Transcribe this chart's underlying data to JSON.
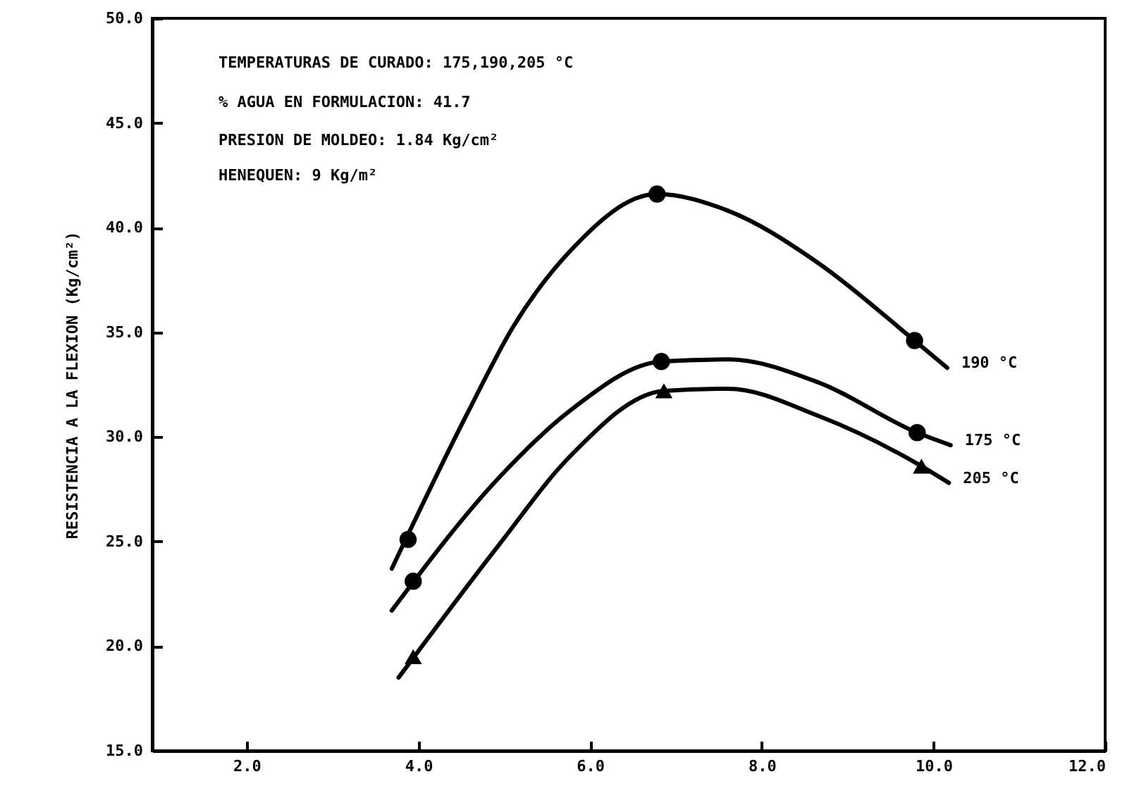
{
  "chart_data": {
    "type": "line",
    "ylabel": "RESISTENCIA A LA FLEXION  (Kg/cm²)",
    "annotations": [
      "TEMPERATURAS DE CURADO: 175,190,205 °C",
      "% AGUA EN FORMULACION: 41.7",
      "PRESION DE MOLDEO: 1.84 Kg/cm²",
      "HENEQUEN: 9 Kg/m²"
    ],
    "xlim": [
      0.9,
      12
    ],
    "ylim": [
      15,
      50
    ],
    "xticks": [
      {
        "value": 2,
        "label": "2.0"
      },
      {
        "value": 4,
        "label": "4.0"
      },
      {
        "value": 6,
        "label": "6.0"
      },
      {
        "value": 8,
        "label": "8.0"
      },
      {
        "value": 10,
        "label": "10.0"
      },
      {
        "value": 12,
        "label": "12.0"
      }
    ],
    "yticks": [
      {
        "value": 15,
        "label": "15.0"
      },
      {
        "value": 20,
        "label": "20.0"
      },
      {
        "value": 25,
        "label": "25.0"
      },
      {
        "value": 30,
        "label": "30.0"
      },
      {
        "value": 35,
        "label": "35.0"
      },
      {
        "value": 40,
        "label": "40.0"
      },
      {
        "value": 45,
        "label": "45.0"
      },
      {
        "value": 50,
        "label": "50.0"
      }
    ],
    "legend": false,
    "series": [
      {
        "name": "190 °C",
        "type": "line",
        "marker": "none",
        "color": "#000000",
        "x": [
          3.69,
          4.58,
          5.11,
          5.75,
          6.78,
          7.61,
          8.66,
          9.78,
          10.16
        ],
        "values": [
          23.7,
          31.2,
          35.3,
          38.8,
          41.6,
          40.8,
          38.3,
          34.6,
          33.3
        ]
      },
      {
        "name": "175 °C",
        "type": "line",
        "marker": "none",
        "color": "#000000",
        "x": [
          3.69,
          4.95,
          5.75,
          6.83,
          7.61,
          8.66,
          9.81,
          10.2
        ],
        "values": [
          21.7,
          28.1,
          31.2,
          33.6,
          33.7,
          32.6,
          30.2,
          29.6
        ]
      },
      {
        "name": "205 °C",
        "type": "line",
        "marker": "none",
        "color": "#000000",
        "x": [
          3.77,
          4.95,
          5.75,
          6.86,
          7.61,
          8.66,
          9.86,
          10.18
        ],
        "values": [
          18.5,
          24.9,
          29.0,
          32.2,
          32.3,
          31.0,
          28.6,
          27.8
        ]
      },
      {
        "type": "scatter",
        "marker": "circle",
        "color": "#000000",
        "x": [
          3.88,
          6.78,
          9.78
        ],
        "values": [
          25.1,
          41.6,
          34.6
        ]
      },
      {
        "type": "scatter",
        "marker": "circle",
        "color": "#000000",
        "x": [
          3.94,
          6.83,
          9.81
        ],
        "values": [
          23.1,
          33.6,
          30.2
        ]
      },
      {
        "type": "scatter",
        "marker": "triangle",
        "color": "#000000",
        "x": [
          3.94,
          6.86,
          9.86
        ],
        "values": [
          19.5,
          32.2,
          28.6
        ]
      }
    ]
  }
}
